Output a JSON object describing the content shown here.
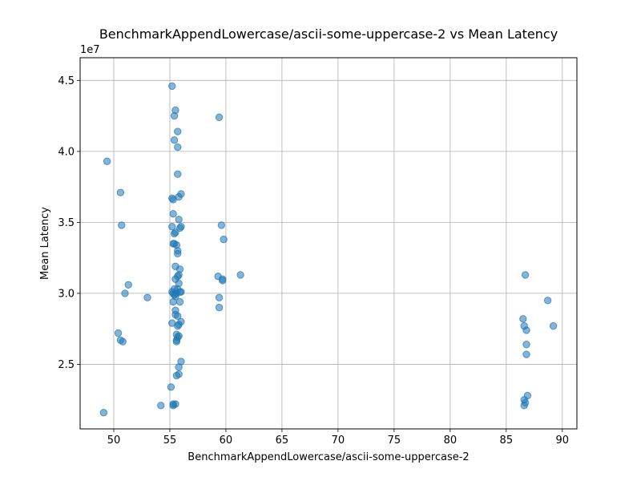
{
  "chart_data": {
    "type": "scatter",
    "title": "BenchmarkAppendLowercase/ascii-some-uppercase-2 vs Mean Latency",
    "xlabel": "BenchmarkAppendLowercase/ascii-some-uppercase-2",
    "ylabel": "Mean Latency",
    "y_offset_label": "1e7",
    "xlim": [
      47.0,
      91.3
    ],
    "ylim": [
      2.045,
      4.66
    ],
    "grid": true,
    "x_ticks": [
      50,
      55,
      60,
      65,
      70,
      75,
      80,
      85,
      90
    ],
    "y_ticks": [
      2.5,
      3.0,
      3.5,
      4.0,
      4.5
    ],
    "y_tick_labels": [
      "2.5",
      "3.0",
      "3.5",
      "4.0",
      "4.5"
    ],
    "point_color": "#1f77b4",
    "series": [
      {
        "x": [
          55.2,
          55.5,
          55.4,
          59.4,
          55.7,
          55.4,
          55.7,
          49.4,
          55.7,
          50.6,
          56.0,
          55.8,
          55.2,
          55.3,
          55.3,
          55.8,
          55.2,
          59.6,
          50.7,
          56.0,
          55.9,
          55.5,
          55.4,
          59.8,
          55.3,
          55.4,
          55.6,
          55.7,
          55.7,
          55.5,
          55.9,
          61.3,
          59.3,
          55.8,
          55.7,
          55.5,
          55.8,
          59.7,
          59.7,
          51.3,
          55.9,
          55.2,
          55.6,
          55.4,
          55.7,
          56.0,
          55.3,
          51.0,
          55.4,
          55.5,
          55.9,
          55.3,
          59.4,
          59.4,
          53.0,
          55.5,
          55.5,
          55.7,
          56.0,
          55.2,
          55.8,
          55.7,
          55.6,
          55.8,
          50.4,
          55.7,
          55.6,
          55.6,
          50.6,
          50.8,
          56.0,
          55.8,
          55.6,
          55.8,
          55.1,
          55.3,
          55.5,
          54.2,
          55.3,
          49.1,
          86.7,
          88.7,
          89.2,
          86.6,
          86.5,
          86.8,
          86.8,
          86.8,
          86.9,
          86.6,
          86.7,
          86.6
        ],
        "y": [
          4.46,
          4.29,
          4.25,
          4.24,
          4.14,
          4.08,
          4.03,
          3.93,
          3.84,
          3.71,
          3.7,
          3.68,
          3.67,
          3.66,
          3.56,
          3.52,
          3.47,
          3.48,
          3.48,
          3.47,
          3.46,
          3.43,
          3.42,
          3.38,
          3.35,
          3.35,
          3.34,
          3.28,
          3.3,
          3.19,
          3.17,
          3.13,
          3.12,
          3.13,
          3.12,
          3.1,
          3.07,
          3.1,
          3.09,
          3.06,
          3.01,
          3.01,
          3.0,
          3.03,
          3.03,
          3.01,
          3.0,
          3.0,
          2.99,
          2.98,
          2.94,
          2.94,
          2.97,
          2.9,
          2.97,
          2.88,
          2.85,
          2.84,
          2.8,
          2.79,
          2.78,
          2.77,
          2.71,
          2.7,
          2.72,
          2.69,
          2.67,
          2.66,
          2.67,
          2.66,
          2.52,
          2.48,
          2.42,
          2.43,
          2.34,
          2.22,
          2.22,
          2.21,
          2.21,
          2.16,
          3.13,
          2.95,
          2.77,
          2.77,
          2.82,
          2.74,
          2.64,
          2.57,
          2.28,
          2.25,
          2.23,
          2.21
        ]
      }
    ]
  }
}
